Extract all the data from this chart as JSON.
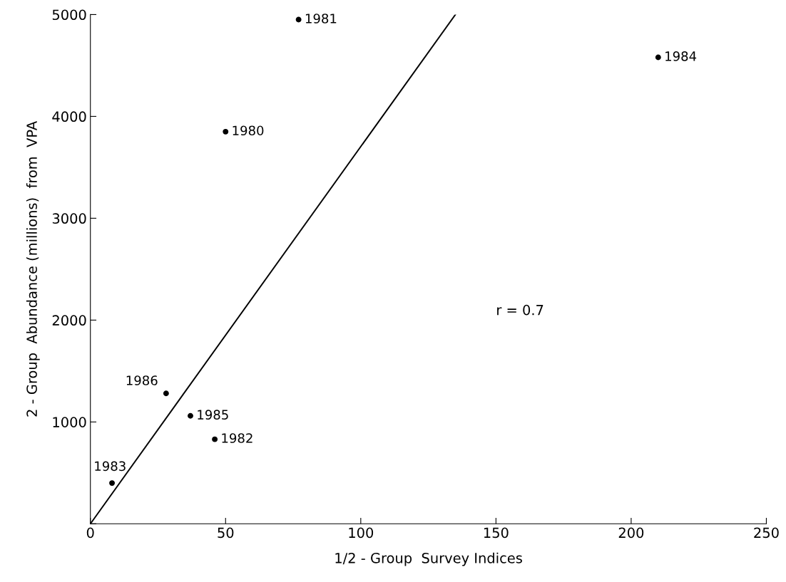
{
  "chart_data": {
    "type": "scatter",
    "xlabel": "1/2 - Group  Survey Indices",
    "ylabel": "2 - Group  Abundance (millions)  from  VPA",
    "series": [
      {
        "color": "#000000",
        "marker": "circle",
        "x": [
          50,
          77,
          46,
          8,
          210,
          37,
          28
        ],
        "values": [
          3850,
          4950,
          830,
          400,
          4580,
          1060,
          1280
        ]
      },
      {
        "type": "line",
        "color": "#000000",
        "marker": "none",
        "x": [
          0,
          135
        ],
        "values": [
          0,
          5000
        ]
      }
    ],
    "annotations": [
      {
        "text": "1980",
        "x": 50,
        "y": 3850
      },
      {
        "text": "1981",
        "x": 77,
        "y": 4950
      },
      {
        "text": "1982",
        "x": 46,
        "y": 830
      },
      {
        "text": "1983",
        "x": 8,
        "y": 400
      },
      {
        "text": "1984",
        "x": 210,
        "y": 4580
      },
      {
        "text": "1985",
        "x": 37,
        "y": 1060
      },
      {
        "text": "1986",
        "x": 28,
        "y": 1280
      },
      "r = 0.7"
    ],
    "xlim": [
      0,
      250
    ],
    "xticks": [
      0,
      50,
      100,
      150,
      200,
      250
    ],
    "ylim": [
      0,
      5000
    ],
    "yticks": [
      {
        "value": 0,
        "label": null
      },
      1000,
      2000,
      3000,
      4000,
      5000
    ],
    "grid": false
  }
}
